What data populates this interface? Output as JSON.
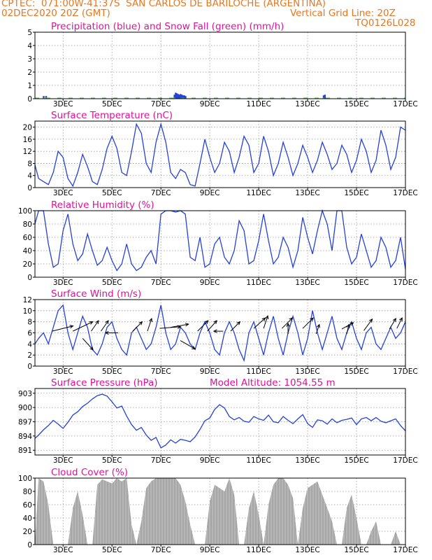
{
  "header": {
    "line1_left": "CPTEC:  071:00W-41:37S  SAN CARLOS DE BARILOCHE (ARGENTINA)",
    "line2_left": "02DEC2020 20Z (GMT)",
    "line2_right": "Vertical Grid Line: 20Z",
    "line3_right": "TQ0126L028"
  },
  "colors": {
    "header": "#e87722",
    "title": "#e0119a",
    "line": "#2541d8",
    "precip": "#2541d8",
    "snow": "#19b81e",
    "cloud": "#a6a6a6",
    "arrow": "#000000"
  },
  "x_ticks": [
    "3DEC",
    "5DEC",
    "7DEC",
    "9DEC",
    "11DEC",
    "13DEC",
    "15DEC",
    "17DEC"
  ],
  "chart_data": [
    {
      "id": "precip",
      "type": "bar",
      "title": "Precipitation (blue) and Snow Fall (green) (mm/h)",
      "ylim": [
        0,
        5
      ],
      "yticks": [
        0,
        1,
        2,
        3,
        4,
        5
      ],
      "series": [
        {
          "name": "Precipitation",
          "points": [
            [
              2.2,
              0.2
            ],
            [
              2.3,
              0.2
            ],
            [
              7.55,
              0.3
            ],
            [
              7.6,
              0.45
            ],
            [
              7.65,
              0.4
            ],
            [
              7.7,
              0.35
            ],
            [
              7.75,
              0.3
            ],
            [
              7.8,
              0.35
            ],
            [
              7.85,
              0.3
            ],
            [
              7.9,
              0.25
            ],
            [
              7.95,
              0.25
            ],
            [
              8.0,
              0.2
            ],
            [
              13.65,
              0.25
            ],
            [
              13.7,
              0.3
            ]
          ]
        },
        {
          "name": "Snow Fall",
          "points": [
            [
              2.2,
              0.1
            ],
            [
              2.3,
              0.1
            ],
            [
              7.55,
              0.1
            ],
            [
              7.9,
              0.1
            ],
            [
              13.65,
              0.1
            ]
          ]
        }
      ]
    },
    {
      "id": "temp",
      "type": "line",
      "title": "Surface Temperature (nC)",
      "ylim": [
        0,
        22
      ],
      "yticks": [
        0,
        4,
        8,
        12,
        16,
        20
      ],
      "x": [
        1.85,
        2.0,
        2.2,
        2.4,
        2.6,
        2.8,
        3.0,
        3.2,
        3.4,
        3.6,
        3.8,
        4.0,
        4.2,
        4.4,
        4.6,
        4.8,
        5.0,
        5.2,
        5.4,
        5.6,
        5.8,
        6.0,
        6.2,
        6.4,
        6.6,
        6.8,
        7.0,
        7.2,
        7.4,
        7.6,
        7.8,
        8.0,
        8.2,
        8.4,
        8.6,
        8.8,
        9.0,
        9.2,
        9.4,
        9.6,
        9.8,
        10.0,
        10.2,
        10.4,
        10.6,
        10.8,
        11.0,
        11.2,
        11.4,
        11.6,
        11.8,
        12.0,
        12.2,
        12.4,
        12.6,
        12.8,
        13.0,
        13.2,
        13.4,
        13.6,
        13.8,
        14.0,
        14.2,
        14.4,
        14.6,
        14.8,
        15.0,
        15.2,
        15.4,
        15.6,
        15.8,
        16.0,
        16.2,
        16.4,
        16.6,
        16.8,
        17.0
      ],
      "y": [
        7.5,
        3,
        2,
        1,
        5,
        12,
        10,
        3,
        0.5,
        5,
        11,
        7,
        2,
        1,
        6,
        13,
        17,
        13,
        5,
        4,
        12,
        21,
        18,
        8,
        5,
        15,
        21,
        15,
        5,
        3,
        6,
        5,
        1,
        0.5,
        8,
        16,
        10,
        5,
        8,
        15,
        12,
        5,
        10,
        17,
        14,
        5,
        8,
        17,
        12,
        4,
        8,
        15,
        10,
        4,
        8,
        14,
        10,
        5,
        9,
        15,
        11,
        6,
        8,
        14,
        11,
        5,
        9,
        16,
        12,
        5,
        9,
        19,
        14,
        6,
        10,
        20,
        19
      ]
    },
    {
      "id": "rh",
      "type": "line",
      "title": "Relative Humidity (%)",
      "ylim": [
        0,
        100
      ],
      "yticks": [
        0,
        20,
        40,
        60,
        80,
        100
      ],
      "x": [
        1.85,
        2.0,
        2.2,
        2.4,
        2.6,
        2.8,
        3.0,
        3.2,
        3.4,
        3.6,
        3.8,
        4.0,
        4.2,
        4.4,
        4.6,
        4.8,
        5.0,
        5.2,
        5.4,
        5.6,
        5.8,
        6.0,
        6.2,
        6.4,
        6.6,
        6.8,
        7.0,
        7.2,
        7.4,
        7.6,
        7.8,
        8.0,
        8.2,
        8.4,
        8.6,
        8.8,
        9.0,
        9.2,
        9.4,
        9.6,
        9.8,
        10.0,
        10.2,
        10.4,
        10.6,
        10.8,
        11.0,
        11.2,
        11.4,
        11.6,
        11.8,
        12.0,
        12.2,
        12.4,
        12.6,
        12.8,
        13.0,
        13.2,
        13.4,
        13.6,
        13.8,
        14.0,
        14.2,
        14.4,
        14.6,
        14.8,
        15.0,
        15.2,
        15.4,
        15.6,
        15.8,
        16.0,
        16.2,
        16.4,
        16.6,
        16.8,
        17.0
      ],
      "y": [
        80,
        100,
        100,
        50,
        15,
        20,
        70,
        95,
        50,
        25,
        35,
        65,
        40,
        18,
        25,
        45,
        25,
        10,
        20,
        50,
        20,
        10,
        15,
        30,
        40,
        20,
        95,
        100,
        100,
        98,
        100,
        95,
        30,
        25,
        60,
        15,
        20,
        50,
        60,
        30,
        20,
        40,
        85,
        70,
        20,
        25,
        55,
        95,
        55,
        20,
        30,
        60,
        45,
        15,
        40,
        90,
        60,
        35,
        70,
        100,
        80,
        40,
        100,
        100,
        45,
        20,
        30,
        65,
        40,
        15,
        25,
        60,
        45,
        15,
        25,
        60,
        12
      ]
    },
    {
      "id": "wind",
      "type": "line",
      "title": "Surface Wind (m/s)",
      "ylim": [
        0,
        12
      ],
      "yticks": [
        0,
        2,
        4,
        6,
        8,
        10,
        12
      ],
      "x": [
        1.85,
        2.0,
        2.2,
        2.4,
        2.6,
        2.8,
        3.0,
        3.2,
        3.4,
        3.6,
        3.8,
        4.0,
        4.2,
        4.4,
        4.6,
        4.8,
        5.0,
        5.2,
        5.4,
        5.6,
        5.8,
        6.0,
        6.2,
        6.4,
        6.6,
        6.8,
        7.0,
        7.2,
        7.4,
        7.6,
        7.8,
        8.0,
        8.2,
        8.4,
        8.6,
        8.8,
        9.0,
        9.2,
        9.4,
        9.6,
        9.8,
        10.0,
        10.2,
        10.4,
        10.6,
        10.8,
        11.0,
        11.2,
        11.4,
        11.6,
        11.8,
        12.0,
        12.2,
        12.4,
        12.6,
        12.8,
        13.0,
        13.2,
        13.4,
        13.6,
        13.8,
        14.0,
        14.2,
        14.4,
        14.6,
        14.8,
        15.0,
        15.2,
        15.4,
        15.6,
        15.8,
        16.0,
        16.2,
        16.4,
        16.6,
        16.8,
        17.0
      ],
      "y": [
        4,
        5,
        6,
        4,
        7,
        10,
        11,
        6,
        3,
        6,
        9,
        7,
        3,
        2,
        4,
        7,
        8,
        5,
        3,
        2,
        6,
        7,
        5,
        3,
        4,
        7,
        11,
        6,
        3,
        4,
        7,
        6,
        4,
        3,
        6,
        8,
        6,
        3,
        2,
        6,
        8,
        6,
        3,
        1,
        6,
        8,
        5,
        2,
        6,
        9,
        5,
        2,
        6,
        9,
        6,
        2,
        5,
        10,
        6,
        3,
        6,
        9,
        5,
        3,
        6,
        8,
        5,
        3,
        6,
        7,
        4,
        3,
        5,
        7,
        5,
        6,
        8
      ]
    },
    {
      "id": "pres",
      "type": "line",
      "title": "Surface Pressure (hPa)",
      "annotation": "Model Altitude: 1054.55 m",
      "ylim": [
        890,
        904
      ],
      "yticks": [
        891,
        894,
        897,
        900,
        903
      ],
      "x": [
        1.85,
        2.0,
        2.2,
        2.4,
        2.6,
        2.8,
        3.0,
        3.2,
        3.4,
        3.6,
        3.8,
        4.0,
        4.2,
        4.4,
        4.6,
        4.8,
        5.0,
        5.2,
        5.4,
        5.6,
        5.8,
        6.0,
        6.2,
        6.4,
        6.6,
        6.8,
        7.0,
        7.2,
        7.4,
        7.6,
        7.8,
        8.0,
        8.2,
        8.4,
        8.6,
        8.8,
        9.0,
        9.2,
        9.4,
        9.6,
        9.8,
        10.0,
        10.2,
        10.4,
        10.6,
        10.8,
        11.0,
        11.2,
        11.4,
        11.6,
        11.8,
        12.0,
        12.2,
        12.4,
        12.6,
        12.8,
        13.0,
        13.2,
        13.4,
        13.6,
        13.8,
        14.0,
        14.2,
        14.4,
        14.6,
        14.8,
        15.0,
        15.2,
        15.4,
        15.6,
        15.8,
        16.0,
        16.2,
        16.4,
        16.6,
        16.8,
        17.0
      ],
      "y": [
        893.5,
        894.2,
        895.3,
        896.2,
        897.3,
        896.5,
        895.6,
        896.9,
        898.4,
        899.1,
        900.2,
        900.9,
        901.8,
        902.5,
        902.8,
        902.4,
        901.2,
        899.9,
        900.3,
        898.2,
        896.4,
        895.2,
        895.8,
        894.2,
        893.1,
        893.7,
        891.5,
        892.1,
        893.2,
        892.5,
        893.3,
        893.1,
        892.8,
        893.8,
        895.4,
        897.2,
        897.8,
        899.6,
        900.6,
        899.9,
        898.1,
        897.4,
        897.9,
        897.1,
        896.9,
        898.1,
        897.6,
        897.3,
        898.4,
        897.0,
        896.8,
        898.1,
        897.3,
        896.6,
        897.6,
        898.5,
        896.6,
        895.8,
        897.4,
        897.2,
        896.5,
        897.6,
        896.8,
        897.3,
        897.5,
        897.8,
        896.4,
        897.6,
        897.9,
        897.2,
        897.9,
        897.1,
        896.8,
        897.2,
        897.6,
        896.2,
        895.1
      ]
    },
    {
      "id": "cloud",
      "type": "area",
      "title": "Cloud Cover (%)",
      "ylim": [
        0,
        100
      ],
      "yticks": [
        0,
        20,
        40,
        60,
        80,
        100
      ],
      "x": [
        1.85,
        2.0,
        2.2,
        2.4,
        2.6,
        2.8,
        3.0,
        3.2,
        3.4,
        3.6,
        3.8,
        4.0,
        4.2,
        4.4,
        4.6,
        4.8,
        5.0,
        5.2,
        5.4,
        5.6,
        5.8,
        6.0,
        6.2,
        6.4,
        6.6,
        6.8,
        7.0,
        7.2,
        7.4,
        7.6,
        7.8,
        8.0,
        8.2,
        8.4,
        8.6,
        8.8,
        9.0,
        9.2,
        9.4,
        9.6,
        9.8,
        10.0,
        10.2,
        10.4,
        10.6,
        10.8,
        11.0,
        11.2,
        11.4,
        11.6,
        11.8,
        12.0,
        12.2,
        12.4,
        12.6,
        12.8,
        13.0,
        13.2,
        13.4,
        13.6,
        13.8,
        14.0,
        14.2,
        14.4,
        14.6,
        14.8,
        15.0,
        15.2,
        15.4,
        15.6,
        15.8,
        16.0,
        16.2,
        16.4,
        16.6,
        16.8,
        17.0
      ],
      "y": [
        0,
        100,
        95,
        60,
        0,
        0,
        0,
        0,
        55,
        80,
        45,
        0,
        0,
        90,
        98,
        95,
        92,
        100,
        95,
        100,
        30,
        0,
        35,
        85,
        95,
        100,
        100,
        100,
        100,
        100,
        90,
        65,
        30,
        0,
        0,
        0,
        65,
        90,
        85,
        80,
        100,
        75,
        0,
        0,
        55,
        80,
        45,
        0,
        60,
        90,
        100,
        100,
        90,
        70,
        0,
        55,
        85,
        90,
        95,
        75,
        55,
        35,
        0,
        0,
        55,
        75,
        40,
        0,
        0,
        20,
        35,
        0,
        0,
        0,
        20,
        0,
        0
      ]
    },
    {
      "id": "wind_arrows",
      "type": "scatter",
      "points": [
        [
          2.55,
          6.3,
          1,
          0.25
        ],
        [
          3.4,
          6.3,
          0.95,
          0.45
        ],
        [
          3.8,
          5,
          0.5,
          -0.55
        ],
        [
          4.15,
          6.3,
          0.35,
          0.5
        ],
        [
          4.55,
          6.3,
          0.35,
          0.5
        ],
        [
          5.25,
          6,
          -0.6,
          0
        ],
        [
          5.85,
          6.3,
          0.45,
          0.45
        ],
        [
          6.45,
          6.3,
          0.2,
          0.6
        ],
        [
          6.95,
          6.8,
          1,
          0.08
        ],
        [
          7.4,
          7,
          0.85,
          0.15
        ],
        [
          7.8,
          4.6,
          0.7,
          -0.4
        ],
        [
          8.5,
          6.3,
          0.5,
          0.5
        ],
        [
          8.9,
          6.3,
          0.45,
          0.5
        ],
        [
          9.55,
          6.3,
          -0.45,
          0
        ],
        [
          9.85,
          6.3,
          0.45,
          0.45
        ],
        [
          10.8,
          6.8,
          0.55,
          0.5
        ],
        [
          11.2,
          6.8,
          0.2,
          0.6
        ],
        [
          11.95,
          6.8,
          0.5,
          0.5
        ],
        [
          12.2,
          5.8,
          0,
          0.5
        ],
        [
          12.8,
          6.8,
          0.5,
          0.5
        ],
        [
          13.35,
          5.8,
          0.15,
          0.45
        ],
        [
          14.4,
          6.7,
          0.55,
          0.3
        ],
        [
          14.6,
          5.8,
          0.1,
          0.45
        ],
        [
          15.3,
          6.4,
          0.4,
          0.55
        ],
        [
          16.35,
          6.7,
          0.3,
          0.5
        ],
        [
          16.65,
          6.8,
          0.25,
          0.5
        ]
      ]
    }
  ]
}
